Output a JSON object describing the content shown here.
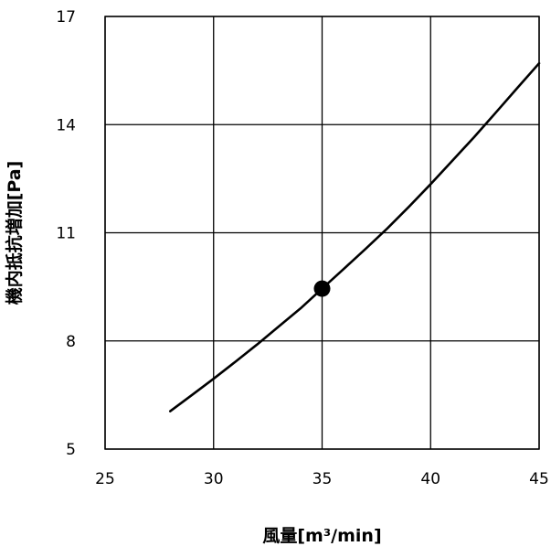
{
  "chart_data": {
    "type": "line",
    "xlabel": "風量[m³/min]",
    "ylabel": "機内抵抗増加[Pa]",
    "xlim": [
      25,
      45
    ],
    "ylim": [
      5,
      17
    ],
    "x_ticks": [
      "25",
      "30",
      "35",
      "40",
      "45"
    ],
    "y_ticks": [
      "5",
      "8",
      "11",
      "14",
      "17"
    ],
    "grid": true,
    "series": [
      {
        "x": [
          28,
          29,
          30,
          31,
          32,
          33,
          34,
          35,
          36,
          37,
          38,
          39,
          40,
          41,
          42,
          43,
          44,
          45
        ],
        "y": [
          6.05,
          6.5,
          6.95,
          7.42,
          7.9,
          8.4,
          8.9,
          9.45,
          10.0,
          10.55,
          11.12,
          11.72,
          12.35,
          13.0,
          13.65,
          14.33,
          15.02,
          15.7
        ]
      }
    ],
    "highlight_point": {
      "x": 35,
      "y": 9.45
    },
    "colors": {
      "line": "#000000",
      "grid": "#000000",
      "marker": "#000000"
    }
  }
}
